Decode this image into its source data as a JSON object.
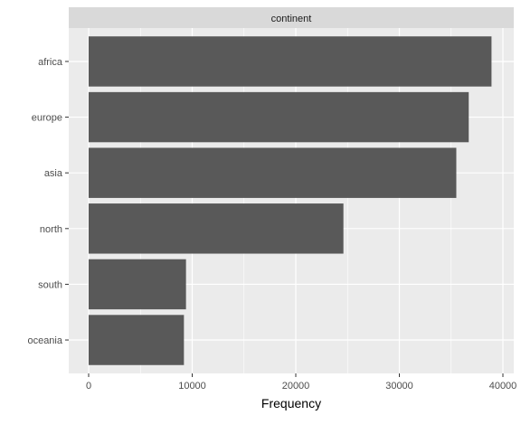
{
  "chart_data": {
    "type": "bar",
    "orientation": "horizontal",
    "facet_label": "continent",
    "categories": [
      "africa",
      "europe",
      "asia",
      "north",
      "south",
      "oceania"
    ],
    "values": [
      38900,
      36700,
      35500,
      24600,
      9400,
      9200
    ],
    "xlabel": "Frequency",
    "ylabel": "",
    "xlim": [
      0,
      40000
    ],
    "x_ticks": [
      0,
      10000,
      20000,
      30000,
      40000
    ],
    "x_tick_labels": [
      "0",
      "10000",
      "20000",
      "30000",
      "40000"
    ],
    "grid": true,
    "legend": "none",
    "colors": {
      "bar": "#595959",
      "panel": "#ebebeb",
      "strip": "#d9d9d9",
      "grid": "#ffffff"
    }
  }
}
